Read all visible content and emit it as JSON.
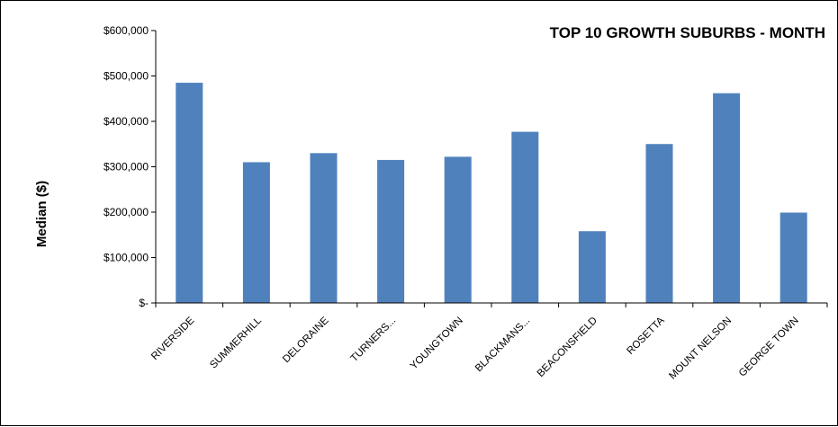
{
  "chart_data": {
    "type": "bar",
    "title": "TOP 10 GROWTH SUBURBS - MONTH",
    "xlabel": "",
    "ylabel": "Median ($)",
    "ylim": [
      0,
      600000
    ],
    "yticks": [
      0,
      100000,
      200000,
      300000,
      400000,
      500000,
      600000
    ],
    "ytick_labels": [
      "$-",
      "$100,000",
      "$200,000",
      "$300,000",
      "$400,000",
      "$500,000",
      "$600,000"
    ],
    "categories": [
      "RIVERSIDE",
      "SUMMERHILL",
      "DELORAINE",
      "TURNERS...",
      "YOUNGTOWN",
      "BLACKMANS...",
      "BEACONSFIELD",
      "ROSETTA",
      "MOUNT NELSON",
      "GEORGE TOWN"
    ],
    "values": [
      485000,
      310000,
      330000,
      315000,
      322000,
      377000,
      158000,
      350000,
      462000,
      199000
    ],
    "bar_color": "#4f81bd",
    "grid": false,
    "legend": "none"
  }
}
